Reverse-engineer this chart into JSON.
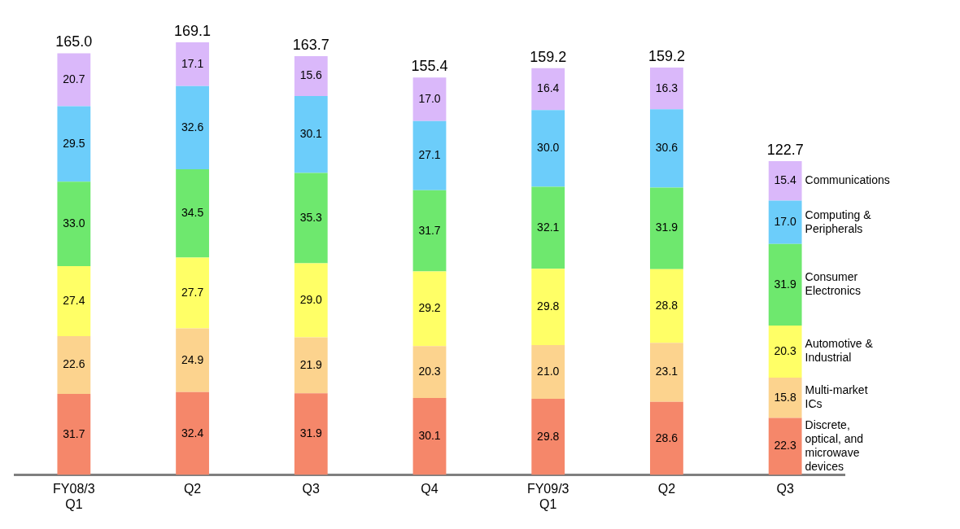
{
  "chart_data": {
    "type": "bar",
    "stacked": true,
    "legend": false,
    "grid": false,
    "categories": [
      "FY08/3\nQ1",
      "Q2",
      "Q3",
      "Q4",
      "FY09/3\nQ1",
      "Q2",
      "Q3"
    ],
    "series": [
      {
        "name": "Discrete, optical, and microwave devices",
        "color": "#f5876a",
        "values": [
          31.7,
          32.4,
          31.9,
          30.1,
          29.8,
          28.6,
          22.3
        ],
        "value_labels": [
          "31.7",
          "32.4",
          "31.9",
          "30.1",
          "29.8",
          "28.6",
          "22.3"
        ]
      },
      {
        "name": "Multi-market ICs",
        "color": "#fcd38e",
        "values": [
          22.6,
          24.9,
          21.9,
          20.3,
          21.0,
          23.1,
          15.8
        ],
        "value_labels": [
          "22.6",
          "24.9",
          "21.9",
          "20.3",
          "21.0",
          "23.1",
          "15.8"
        ]
      },
      {
        "name": "Automotive & Industrial",
        "color": "#ffff66",
        "values": [
          27.4,
          27.7,
          29.0,
          29.2,
          29.8,
          28.8,
          20.3
        ],
        "value_labels": [
          "27.4",
          "27.7",
          "29.0",
          "29.2",
          "29.8",
          "28.8",
          "20.3"
        ]
      },
      {
        "name": "Consumer Electronics",
        "color": "#6ee86e",
        "values": [
          33.0,
          34.5,
          35.3,
          31.7,
          32.1,
          31.9,
          31.9
        ],
        "value_labels": [
          "33.0",
          "34.5",
          "35.3",
          "31.7",
          "32.1",
          "31.9",
          "31.9"
        ]
      },
      {
        "name": "Computing & Peripherals",
        "color": "#6ccdfa",
        "values": [
          29.5,
          32.6,
          30.1,
          27.1,
          30.0,
          30.6,
          17.0
        ],
        "value_labels": [
          "29.5",
          "32.6",
          "30.1",
          "27.1",
          "30.0",
          "30.6",
          "17.0"
        ]
      },
      {
        "name": "Communications",
        "color": "#dab8fa",
        "values": [
          20.7,
          17.1,
          15.6,
          17.0,
          16.4,
          16.3,
          15.4
        ],
        "value_labels": [
          "20.7",
          "17.1",
          "15.6",
          "17.0",
          "16.4",
          "16.3",
          "15.4"
        ]
      }
    ],
    "totals": [
      "165.0",
      "169.1",
      "163.7",
      "155.4",
      "159.2",
      "159.2",
      "122.7"
    ]
  }
}
